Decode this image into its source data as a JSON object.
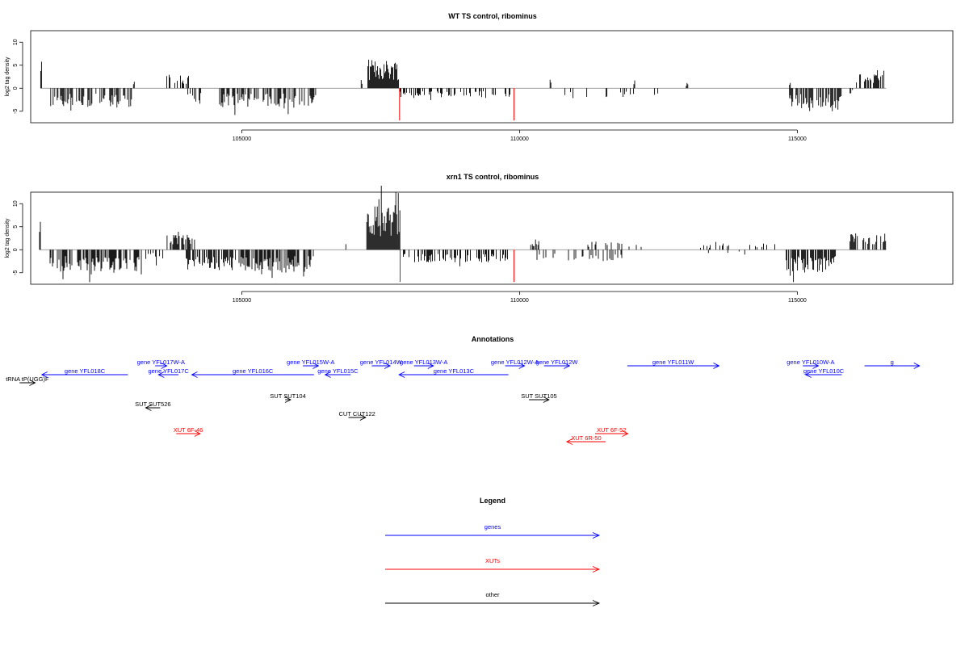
{
  "chart_data": [
    {
      "type": "bar",
      "title": "WT TS control, ribominus",
      "ylabel": "log2 tag density",
      "xlim": [
        101200,
        117800
      ],
      "ylim": [
        -7.5,
        12.5
      ],
      "x_ticks": [
        105000,
        110000,
        115000
      ],
      "y_ticks": [
        -5,
        0,
        5,
        10
      ],
      "highlight_positions": [
        107840,
        109900
      ],
      "highlight_depth": -7,
      "segments": [
        {
          "start": 101380,
          "end": 101400,
          "direction": "up",
          "level": 6,
          "density": 1
        },
        {
          "start": 101560,
          "end": 103050,
          "direction": "down",
          "level": 3.4,
          "density": 0.5
        },
        {
          "start": 103050,
          "end": 103180,
          "direction": "up",
          "level": 1.2,
          "density": 0.2
        },
        {
          "start": 103650,
          "end": 104050,
          "direction": "up",
          "level": 2.5,
          "density": 0.5
        },
        {
          "start": 104000,
          "end": 104350,
          "direction": "down",
          "level": 3,
          "density": 0.5
        },
        {
          "start": 104450,
          "end": 104500,
          "direction": "up",
          "level": 2,
          "density": 0.5
        },
        {
          "start": 104600,
          "end": 106350,
          "direction": "down",
          "level": 3.3,
          "density": 0.55
        },
        {
          "start": 107150,
          "end": 107200,
          "direction": "up",
          "level": 1.2,
          "density": 0.5
        },
        {
          "start": 107270,
          "end": 107830,
          "direction": "up",
          "level": 5,
          "density": 1
        },
        {
          "start": 107850,
          "end": 109870,
          "direction": "down",
          "level": 1.7,
          "density": 0.3
        },
        {
          "start": 110550,
          "end": 110570,
          "direction": "up",
          "level": 2.3,
          "density": 1
        },
        {
          "start": 110700,
          "end": 112500,
          "direction": "down",
          "level": 1.6,
          "density": 0.1
        },
        {
          "start": 112000,
          "end": 112100,
          "direction": "up",
          "level": 1.4,
          "density": 0.4
        },
        {
          "start": 113000,
          "end": 113030,
          "direction": "up",
          "level": 1,
          "density": 0.5
        },
        {
          "start": 114860,
          "end": 114880,
          "direction": "up",
          "level": 1.2,
          "density": 1
        },
        {
          "start": 114860,
          "end": 115800,
          "direction": "down",
          "level": 3.6,
          "density": 0.65
        },
        {
          "start": 115950,
          "end": 116050,
          "direction": "down",
          "level": 1,
          "density": 0.3
        },
        {
          "start": 116050,
          "end": 116600,
          "direction": "up",
          "level": 2.4,
          "density": 0.6
        }
      ]
    },
    {
      "type": "bar",
      "title": "xrn1 TS control, ribominus",
      "ylabel": "log2 tag density",
      "xlim": [
        101200,
        117800
      ],
      "ylim": [
        -7.5,
        12.5
      ],
      "x_ticks": [
        105000,
        110000,
        115000
      ],
      "y_ticks": [
        -5,
        0,
        5,
        10
      ],
      "highlight_positions": [
        107850,
        109900
      ],
      "highlight_depth": -7,
      "segments": [
        {
          "start": 101360,
          "end": 101380,
          "direction": "up",
          "level": 5.5,
          "density": 1
        },
        {
          "start": 101520,
          "end": 103200,
          "direction": "down",
          "level": 3.8,
          "density": 0.65
        },
        {
          "start": 103200,
          "end": 103600,
          "direction": "down",
          "level": 2,
          "density": 0.3
        },
        {
          "start": 103640,
          "end": 104150,
          "direction": "up",
          "level": 2.6,
          "density": 0.6
        },
        {
          "start": 104000,
          "end": 104900,
          "direction": "down",
          "level": 3.6,
          "density": 0.65
        },
        {
          "start": 104950,
          "end": 106300,
          "direction": "down",
          "level": 4,
          "density": 0.7
        },
        {
          "start": 106800,
          "end": 106900,
          "direction": "up",
          "level": 1,
          "density": 0.3
        },
        {
          "start": 107250,
          "end": 107850,
          "direction": "up",
          "level": 7.8,
          "density": 1
        },
        {
          "start": 107850,
          "end": 109850,
          "direction": "down",
          "level": 2.2,
          "density": 0.45
        },
        {
          "start": 110200,
          "end": 110350,
          "direction": "up",
          "level": 1.8,
          "density": 0.6
        },
        {
          "start": 110300,
          "end": 112000,
          "direction": "down",
          "level": 1.9,
          "density": 0.25
        },
        {
          "start": 111200,
          "end": 112200,
          "direction": "up",
          "level": 1.4,
          "density": 0.25
        },
        {
          "start": 113200,
          "end": 114700,
          "direction": "up",
          "level": 1.1,
          "density": 0.15
        },
        {
          "start": 113400,
          "end": 114200,
          "direction": "down",
          "level": 0.9,
          "density": 0.1
        },
        {
          "start": 114800,
          "end": 115700,
          "direction": "down",
          "level": 4,
          "density": 0.75
        },
        {
          "start": 115950,
          "end": 116600,
          "direction": "up",
          "level": 2.9,
          "density": 0.6
        }
      ]
    }
  ],
  "annotations": {
    "title": "Annotations",
    "colors": {
      "genes": "#0000ff",
      "XUTs": "#ff0000",
      "other": "#000000"
    },
    "items": [
      {
        "label": "tRNA tP(UGG)F",
        "start": 101000,
        "end": 101280,
        "strand": "+",
        "category": "other",
        "row": 3
      },
      {
        "label": "gene YFL018C",
        "start": 101400,
        "end": 102950,
        "strand": "-",
        "category": "genes",
        "row": 2
      },
      {
        "label": "gene YFL017W-A",
        "start": 103440,
        "end": 103650,
        "strand": "+",
        "category": "genes",
        "row": 1
      },
      {
        "label": "gene YFL017C",
        "start": 103500,
        "end": 103860,
        "strand": "-",
        "category": "genes",
        "row": 2
      },
      {
        "label": "gene YFL016C",
        "start": 104100,
        "end": 106300,
        "strand": "-",
        "category": "genes",
        "row": 2
      },
      {
        "label": "gene YFL015W-A",
        "start": 106100,
        "end": 106380,
        "strand": "+",
        "category": "genes",
        "row": 1
      },
      {
        "label": "gene YFL015C",
        "start": 106500,
        "end": 106960,
        "strand": "-",
        "category": "genes",
        "row": 2
      },
      {
        "label": "gene YFL014W",
        "start": 107340,
        "end": 107670,
        "strand": "+",
        "category": "genes",
        "row": 1
      },
      {
        "label": "gene YFL013W-A",
        "start": 108100,
        "end": 108450,
        "strand": "+",
        "category": "genes",
        "row": 1
      },
      {
        "label": "gene YFL013C",
        "start": 107830,
        "end": 109800,
        "strand": "-",
        "category": "genes",
        "row": 2
      },
      {
        "label": "gene YFL012W-A",
        "start": 109740,
        "end": 110090,
        "strand": "+",
        "category": "genes",
        "row": 1
      },
      {
        "label": "gene YFL012W",
        "start": 110440,
        "end": 110900,
        "strand": "+",
        "category": "genes",
        "row": 1
      },
      {
        "label": "gene YFL011W",
        "start": 111940,
        "end": 113590,
        "strand": "+",
        "category": "genes",
        "row": 1
      },
      {
        "label": "gene YFL010W-A",
        "start": 115100,
        "end": 115380,
        "strand": "+",
        "category": "genes",
        "row": 1
      },
      {
        "label": "gene YFL010C",
        "start": 115150,
        "end": 115800,
        "strand": "-",
        "category": "genes",
        "row": 2
      },
      {
        "label": "g",
        "start": 116210,
        "end": 117200,
        "strand": "+",
        "category": "genes",
        "row": 1
      },
      {
        "label": "SUT SUT526",
        "start": 103270,
        "end": 103530,
        "strand": "-",
        "category": "other",
        "row": 5
      },
      {
        "label": "SUT SUT104",
        "start": 105780,
        "end": 105880,
        "strand": "+",
        "category": "other",
        "row": 4
      },
      {
        "label": "CUT CUT122",
        "start": 106920,
        "end": 107230,
        "strand": "+",
        "category": "other",
        "row": 6
      },
      {
        "label": "SUT SUT105",
        "start": 110170,
        "end": 110530,
        "strand": "+",
        "category": "other",
        "row": 4
      },
      {
        "label": "XUT 6F-46",
        "start": 103820,
        "end": 104250,
        "strand": "+",
        "category": "XUTs",
        "row": 7
      },
      {
        "label": "XUT 6F-52",
        "start": 111360,
        "end": 111950,
        "strand": "+",
        "category": "XUTs",
        "row": 7
      },
      {
        "label": "XUT 6R-50",
        "start": 110850,
        "end": 111550,
        "strand": "-",
        "category": "XUTs",
        "row": 8
      }
    ]
  },
  "legend": {
    "title": "Legend",
    "items": [
      {
        "label": "genes",
        "color": "#0000ff"
      },
      {
        "label": "XUTs",
        "color": "#ff0000"
      },
      {
        "label": "other",
        "color": "#000000"
      }
    ]
  }
}
